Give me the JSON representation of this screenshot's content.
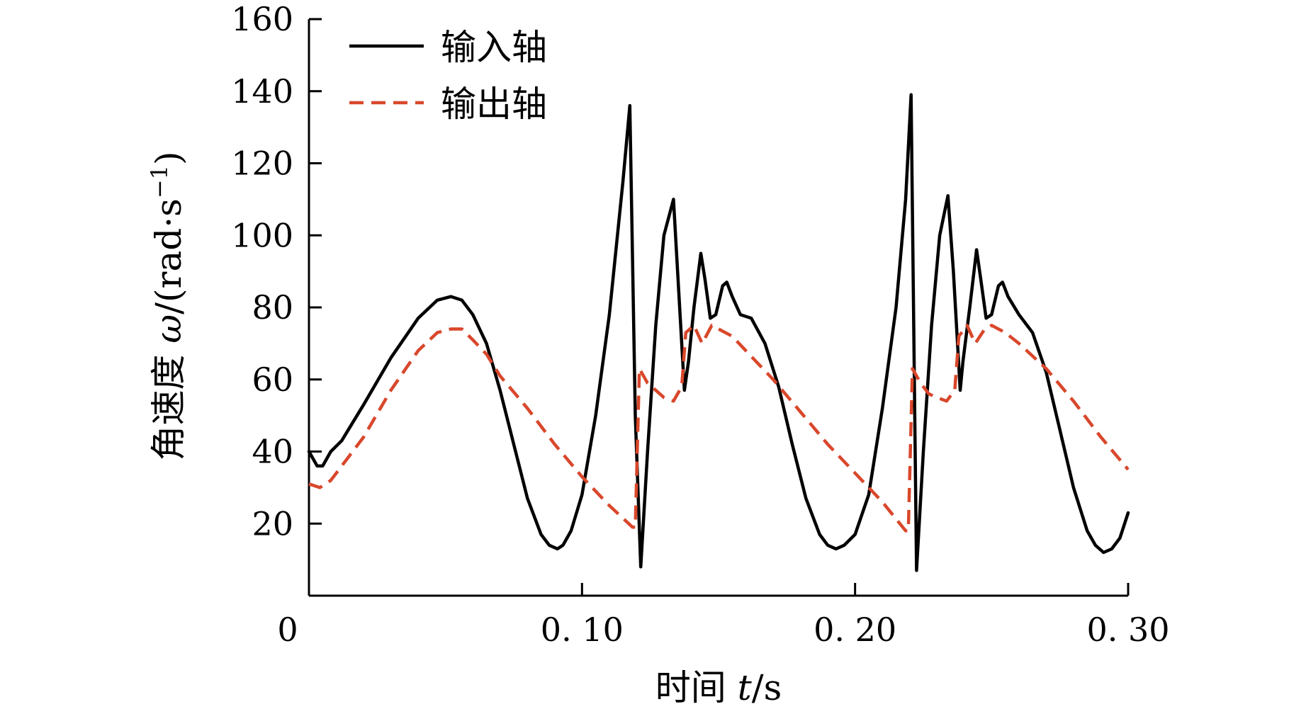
{
  "chart_data": {
    "type": "line",
    "xlabel": "时间 t/s",
    "xlabel_parts": {
      "prefix": "时间 ",
      "var": "t",
      "unit": "/s"
    },
    "ylabel": "角速度 ω/(rad·s⁻¹)",
    "ylabel_parts": {
      "prefix": "角速度 ",
      "var": "ω",
      "unit": "/(rad·s",
      "sup": "−1",
      "close": ")"
    },
    "xlim": [
      0,
      0.3
    ],
    "ylim": [
      0,
      160
    ],
    "x_ticks": [
      0,
      0.1,
      0.2,
      0.3
    ],
    "x_tick_labels": [
      "0",
      "0. 10",
      "0. 20",
      "0. 30"
    ],
    "y_ticks": [
      20,
      40,
      60,
      80,
      100,
      120,
      140,
      160
    ],
    "y_tick_labels": [
      "20",
      "40",
      "60",
      "80",
      "100",
      "120",
      "140",
      "160"
    ],
    "grid": false,
    "legend_position": "top-left",
    "series": [
      {
        "name": "输入轴",
        "color": "#000000",
        "dash": "solid",
        "x": [
          0,
          0.003,
          0.005,
          0.008,
          0.012,
          0.02,
          0.03,
          0.04,
          0.047,
          0.052,
          0.056,
          0.06,
          0.065,
          0.07,
          0.075,
          0.08,
          0.085,
          0.088,
          0.091,
          0.093,
          0.096,
          0.1,
          0.105,
          0.11,
          0.115,
          0.1175,
          0.1195,
          0.1215,
          0.124,
          0.127,
          0.13,
          0.1335,
          0.135,
          0.1375,
          0.139,
          0.141,
          0.1435,
          0.145,
          0.147,
          0.149,
          0.1515,
          0.153,
          0.155,
          0.158,
          0.162,
          0.167,
          0.172,
          0.177,
          0.182,
          0.187,
          0.19,
          0.193,
          0.196,
          0.2,
          0.205,
          0.21,
          0.215,
          0.2185,
          0.2205,
          0.2225,
          0.225,
          0.228,
          0.231,
          0.234,
          0.236,
          0.2385,
          0.2395,
          0.242,
          0.2445,
          0.246,
          0.248,
          0.25,
          0.2525,
          0.254,
          0.256,
          0.26,
          0.265,
          0.27,
          0.275,
          0.28,
          0.285,
          0.288,
          0.291,
          0.294,
          0.297,
          0.3
        ],
        "y": [
          40,
          36,
          36,
          40,
          43,
          53,
          66,
          77,
          82,
          83,
          82,
          78,
          70,
          57,
          42,
          27,
          17,
          14,
          13,
          14,
          18,
          28,
          50,
          78,
          115,
          136,
          50,
          8,
          40,
          75,
          100,
          110,
          90,
          57,
          65,
          80,
          95,
          88,
          77,
          78,
          86,
          87,
          83,
          78,
          77,
          70,
          58,
          42,
          27,
          17,
          14,
          13,
          14,
          17,
          28,
          52,
          80,
          110,
          139,
          7,
          40,
          75,
          100,
          111,
          90,
          57,
          65,
          80,
          96,
          88,
          77,
          78,
          86,
          87,
          83,
          78,
          73,
          62,
          46,
          30,
          18,
          14,
          12,
          13,
          16,
          23
        ]
      },
      {
        "name": "输出轴",
        "color": "#d9472b",
        "dash": "dashed",
        "x": [
          0,
          0.004,
          0.008,
          0.012,
          0.02,
          0.03,
          0.04,
          0.047,
          0.052,
          0.056,
          0.06,
          0.065,
          0.07,
          0.08,
          0.09,
          0.1,
          0.11,
          0.1185,
          0.1195,
          0.121,
          0.124,
          0.127,
          0.13,
          0.1335,
          0.1365,
          0.138,
          0.141,
          0.144,
          0.1475,
          0.15,
          0.155,
          0.16,
          0.17,
          0.18,
          0.19,
          0.2,
          0.21,
          0.2185,
          0.2195,
          0.221,
          0.224,
          0.227,
          0.23,
          0.2335,
          0.2365,
          0.238,
          0.241,
          0.244,
          0.2475,
          0.25,
          0.255,
          0.26,
          0.27,
          0.28,
          0.29,
          0.3
        ],
        "y": [
          31,
          30,
          32,
          36,
          44,
          57,
          68,
          73,
          74,
          74,
          71,
          67,
          61,
          52,
          42,
          33,
          25,
          19,
          19,
          63,
          59,
          57,
          55,
          54,
          58,
          73,
          75,
          70,
          75,
          74,
          72,
          68,
          60,
          51,
          42,
          34,
          26,
          18,
          18,
          63,
          59,
          56,
          55,
          54,
          57,
          72,
          75,
          70,
          74,
          75,
          73,
          70,
          63,
          54,
          44,
          35
        ]
      }
    ]
  }
}
